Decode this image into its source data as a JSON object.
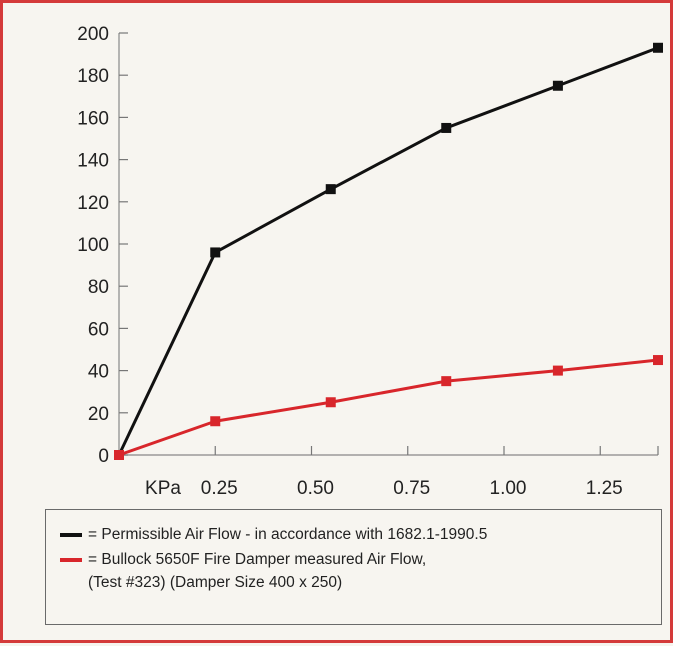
{
  "colors": {
    "frame": "#d43a3a",
    "series_permissible": "#111111",
    "series_measured": "#d8262b"
  },
  "chart_data": {
    "type": "line",
    "xlabel": "KPa",
    "x_tick_labels": [
      "0.25",
      "0.50",
      "0.75",
      "1.00",
      "1.25"
    ],
    "y_tick_labels": [
      "0",
      "20",
      "40",
      "60",
      "80",
      "100",
      "120",
      "140",
      "160",
      "180",
      "200"
    ],
    "ylim": [
      0,
      200
    ],
    "xlim": [
      0,
      1.4
    ],
    "grid": false,
    "legend_placement": "bottom",
    "series": [
      {
        "legend_text": "= Permissible Air Flow - in accordance with 1682.1-1990.5",
        "color": "#111111",
        "x": [
          0,
          0.25,
          0.55,
          0.85,
          1.14,
          1.4
        ],
        "y": [
          0,
          96,
          126,
          155,
          175,
          193
        ]
      },
      {
        "legend_text": "= Bullock 5650F Fire Damper measured Air Flow,",
        "legend_text_cont": "(Test #323) (Damper Size 400 x 250)",
        "color": "#d8262b",
        "x": [
          0,
          0.25,
          0.55,
          0.85,
          1.14,
          1.4
        ],
        "y": [
          0,
          16,
          25,
          35,
          40,
          45
        ]
      }
    ]
  }
}
